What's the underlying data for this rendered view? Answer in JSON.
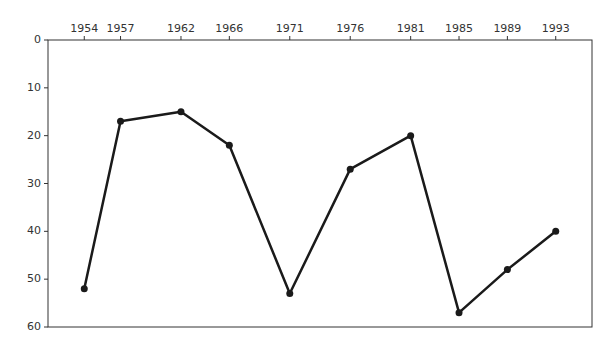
{
  "chart_data": {
    "type": "line",
    "x": [
      1954,
      1957,
      1962,
      1966,
      1971,
      1976,
      1981,
      1985,
      1989,
      1993
    ],
    "values": [
      52,
      17,
      15,
      22,
      53,
      27,
      20,
      57,
      48,
      40
    ],
    "xlim": [
      1951,
      1996
    ],
    "xticks": [
      1954,
      1957,
      1962,
      1966,
      1971,
      1976,
      1981,
      1985,
      1989,
      1993
    ],
    "ylim": [
      60,
      0
    ],
    "yticks": [
      0,
      10,
      20,
      30,
      40,
      50,
      60
    ],
    "color": "#1a1a1a",
    "marker": "circle",
    "grid": false
  }
}
